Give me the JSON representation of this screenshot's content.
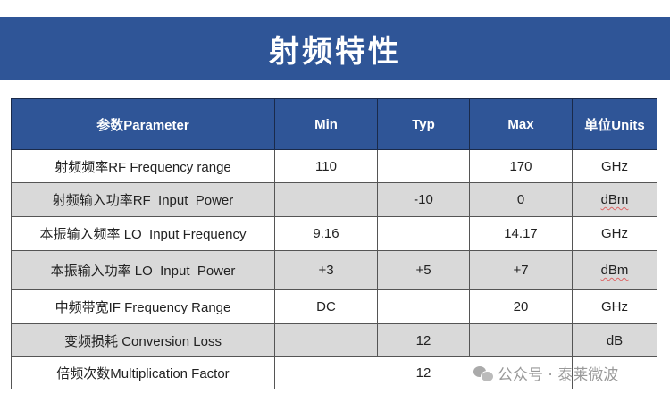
{
  "title": "射频特性",
  "table": {
    "headers": [
      "参数Parameter",
      "Min",
      "Typ",
      "Max",
      "单位Units"
    ],
    "rows": [
      {
        "parameter": "射频频率RF Frequency range",
        "min": "110",
        "typ": "",
        "max": "170",
        "unit": "GHz"
      },
      {
        "parameter": "射频输入功率RF  Input  Power",
        "min": "",
        "typ": "-10",
        "max": "0",
        "unit": "dBm"
      },
      {
        "parameter": "本振输入频率 LO  Input Frequency",
        "min": "9.16",
        "typ": "",
        "max": "14.17",
        "unit": "GHz"
      },
      {
        "parameter": "本振输入功率 LO  Input  Power",
        "min": "+3",
        "typ": "+5",
        "max": "+7",
        "unit": "dBm"
      },
      {
        "parameter": "中频带宽IF Frequency Range",
        "min": "DC",
        "typ": "",
        "max": "20",
        "unit": "GHz"
      },
      {
        "parameter": "变频损耗 Conversion Loss",
        "min": "",
        "typ": "12",
        "max": "",
        "unit": "dB"
      },
      {
        "parameter": "倍频次数Multiplication Factor",
        "value": "12"
      }
    ]
  },
  "watermark": {
    "icon": "wechat-icon",
    "text": "公众号 · 泰莱微波"
  }
}
